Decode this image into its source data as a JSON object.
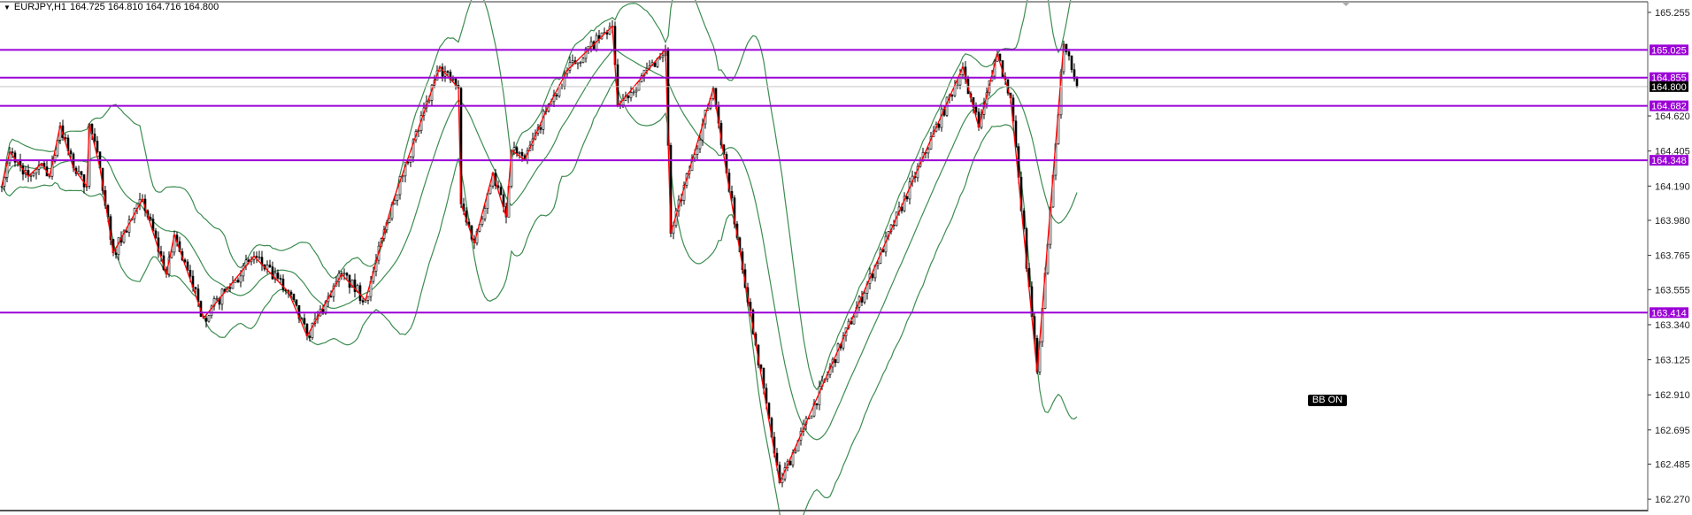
{
  "header": {
    "symbol_timeframe": "EURJPY,H1",
    "ohlc": "164.725 164.810 164.716 164.800"
  },
  "indicator_label": "BB ON",
  "colors": {
    "level_line": "#9b00d6",
    "bands": "#3c8c50",
    "zigzag": "#ff0000",
    "candles": "#000000",
    "current_price_bg": "#000000"
  },
  "chart_data": {
    "type": "candlestick",
    "symbol": "EURJPY",
    "timeframe": "H1",
    "y_ticks": [
      "165.255",
      "164.620",
      "164.405",
      "164.190",
      "163.980",
      "163.765",
      "163.555",
      "163.340",
      "163.125",
      "162.910",
      "162.695",
      "162.485",
      "162.270"
    ],
    "ylim": [
      162.2,
      165.33
    ],
    "grid": false,
    "current_price": "164.800",
    "horizontal_levels": [
      "165.025",
      "164.855",
      "164.682",
      "164.348",
      "163.414"
    ],
    "indicators": [
      "Bollinger Bands",
      "ZigZag"
    ],
    "zigzag_points": [
      {
        "bar": 0,
        "price": 164.19
      },
      {
        "bar": 3,
        "price": 164.4
      },
      {
        "bar": 10,
        "price": 164.25
      },
      {
        "bar": 15,
        "price": 164.33
      },
      {
        "bar": 18,
        "price": 164.25
      },
      {
        "bar": 22,
        "price": 164.56
      },
      {
        "bar": 27,
        "price": 164.3
      },
      {
        "bar": 32,
        "price": 164.19
      },
      {
        "bar": 33,
        "price": 164.57
      },
      {
        "bar": 37,
        "price": 164.3
      },
      {
        "bar": 42,
        "price": 163.78
      },
      {
        "bar": 53,
        "price": 164.11
      },
      {
        "bar": 62,
        "price": 163.65
      },
      {
        "bar": 65,
        "price": 163.89
      },
      {
        "bar": 72,
        "price": 163.57
      },
      {
        "bar": 76,
        "price": 163.38
      },
      {
        "bar": 95,
        "price": 163.76
      },
      {
        "bar": 108,
        "price": 163.54
      },
      {
        "bar": 115,
        "price": 163.27
      },
      {
        "bar": 128,
        "price": 163.65
      },
      {
        "bar": 137,
        "price": 163.49
      },
      {
        "bar": 147,
        "price": 164.08
      },
      {
        "bar": 165,
        "price": 164.92
      },
      {
        "bar": 172,
        "price": 164.79
      },
      {
        "bar": 173,
        "price": 164.08
      },
      {
        "bar": 178,
        "price": 163.84
      },
      {
        "bar": 185,
        "price": 164.27
      },
      {
        "bar": 190,
        "price": 164.0
      },
      {
        "bar": 192,
        "price": 164.41
      },
      {
        "bar": 197,
        "price": 164.35
      },
      {
        "bar": 205,
        "price": 164.65
      },
      {
        "bar": 213,
        "price": 164.9
      },
      {
        "bar": 230,
        "price": 165.17
      },
      {
        "bar": 232,
        "price": 164.68
      },
      {
        "bar": 250,
        "price": 165.03
      },
      {
        "bar": 252,
        "price": 163.9
      },
      {
        "bar": 268,
        "price": 164.79
      },
      {
        "bar": 273,
        "price": 164.27
      },
      {
        "bar": 293,
        "price": 162.37
      },
      {
        "bar": 362,
        "price": 164.92
      },
      {
        "bar": 368,
        "price": 164.55
      },
      {
        "bar": 375,
        "price": 165.0
      },
      {
        "bar": 380,
        "price": 164.73
      },
      {
        "bar": 390,
        "price": 163.05
      },
      {
        "bar": 400,
        "price": 165.06
      },
      {
        "bar": 405,
        "price": 164.8
      }
    ]
  }
}
